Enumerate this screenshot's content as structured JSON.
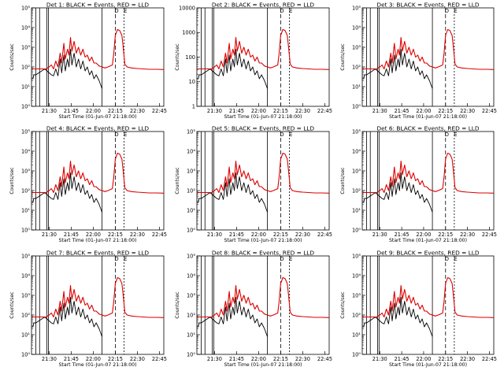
{
  "chart_data": [
    {
      "type": "line",
      "title": "Det 1: BLACK = Events, RED = LLD",
      "xlabel": "Start Time (01-Jun-07 21:18:00)",
      "ylabel": "Counts/sec",
      "yscale": "log",
      "ylim": [
        1,
        100000
      ],
      "ytick_labels": [
        "10⁰",
        "10¹",
        "10²",
        "10³",
        "10⁴",
        "10⁵"
      ],
      "ytick_values": [
        1,
        10,
        100,
        1000,
        10000,
        100000
      ],
      "xtick_labels": [
        "21:30",
        "21:45",
        "22:00",
        "22:15",
        "22:30",
        "22:45"
      ],
      "marker_labels": [
        "D",
        "E"
      ],
      "grid": false,
      "legend": "title",
      "series": [
        {
          "name": "BLACK = Events",
          "color": "#000000",
          "shape": "events"
        },
        {
          "name": "RED = LLD",
          "color": "#dd0000",
          "shape": "lld"
        }
      ]
    },
    {
      "type": "line",
      "title": "Det 2: BLACK = Events, RED = LLD",
      "xlabel": "Start Time (01-Jun-07 21:18:00)",
      "ylabel": "Counts/sec",
      "yscale": "log",
      "ylim": [
        1,
        10000
      ],
      "ytick_labels": [
        "1",
        "10",
        "100",
        "1000",
        "10000"
      ],
      "ytick_values": [
        1,
        10,
        100,
        1000,
        10000
      ],
      "xtick_labels": [
        "21:30",
        "21:45",
        "22:00",
        "22:15",
        "22:30",
        "22:45"
      ],
      "marker_labels": [
        "D",
        "E"
      ],
      "grid": false,
      "legend": "title",
      "series": [
        {
          "name": "BLACK = Events",
          "color": "#000000",
          "shape": "events"
        },
        {
          "name": "RED = LLD",
          "color": "#dd0000",
          "shape": "lld"
        }
      ]
    },
    {
      "type": "line",
      "title": "Det 3: BLACK = Events, RED = LLD",
      "xlabel": "Start Time (01-Jun-07 21:18:00)",
      "ylabel": "Counts/sec",
      "yscale": "log",
      "ylim": [
        1,
        100000
      ],
      "ytick_labels": [
        "10⁰",
        "10¹",
        "10²",
        "10³",
        "10⁴",
        "10⁵"
      ],
      "ytick_values": [
        1,
        10,
        100,
        1000,
        10000,
        100000
      ],
      "xtick_labels": [
        "21:30",
        "21:45",
        "22:00",
        "22:15",
        "22:30",
        "22:45"
      ],
      "marker_labels": [
        "D",
        "E"
      ],
      "grid": false,
      "legend": "title",
      "series": [
        {
          "name": "BLACK = Events",
          "color": "#000000",
          "shape": "events"
        },
        {
          "name": "RED = LLD",
          "color": "#dd0000",
          "shape": "lld"
        }
      ]
    },
    {
      "type": "line",
      "title": "Det 4: BLACK = Events, RED = LLD",
      "xlabel": "Start Time (01-Jun-07 21:18:00)",
      "ylabel": "Counts/sec",
      "yscale": "log",
      "ylim": [
        1,
        100000
      ],
      "ytick_labels": [
        "10⁰",
        "10¹",
        "10²",
        "10³",
        "10⁴",
        "10⁵"
      ],
      "ytick_values": [
        1,
        10,
        100,
        1000,
        10000,
        100000
      ],
      "xtick_labels": [
        "21:30",
        "21:45",
        "22:00",
        "22:15",
        "22:30",
        "22:45"
      ],
      "marker_labels": [
        "D",
        "E"
      ],
      "grid": false,
      "legend": "title",
      "series": [
        {
          "name": "BLACK = Events",
          "color": "#000000",
          "shape": "events"
        },
        {
          "name": "RED = LLD",
          "color": "#dd0000",
          "shape": "lld"
        }
      ]
    },
    {
      "type": "line",
      "title": "Det 5: BLACK = Events, RED = LLD",
      "xlabel": "Start Time (01-Jun-07 21:18:00)",
      "ylabel": "Counts/sec",
      "yscale": "log",
      "ylim": [
        1,
        100000
      ],
      "ytick_labels": [
        "10⁰",
        "10¹",
        "10²",
        "10³",
        "10⁴",
        "10⁵"
      ],
      "ytick_values": [
        1,
        10,
        100,
        1000,
        10000,
        100000
      ],
      "xtick_labels": [
        "21:30",
        "21:45",
        "22:00",
        "22:15",
        "22:30",
        "22:45"
      ],
      "marker_labels": [
        "D",
        "E"
      ],
      "grid": false,
      "legend": "title",
      "series": [
        {
          "name": "BLACK = Events",
          "color": "#000000",
          "shape": "events"
        },
        {
          "name": "RED = LLD",
          "color": "#dd0000",
          "shape": "lld"
        }
      ]
    },
    {
      "type": "line",
      "title": "Det 6: BLACK = Events, RED = LLD",
      "xlabel": "Start Time (01-Jun-07 21:18:00)",
      "ylabel": "Counts/sec",
      "yscale": "log",
      "ylim": [
        1,
        100000
      ],
      "ytick_labels": [
        "10⁰",
        "10¹",
        "10²",
        "10³",
        "10⁴",
        "10⁵"
      ],
      "ytick_values": [
        1,
        10,
        100,
        1000,
        10000,
        100000
      ],
      "xtick_labels": [
        "21:30",
        "21:45",
        "22:00",
        "22:15",
        "22:30",
        "22:45"
      ],
      "marker_labels": [
        "D",
        "E"
      ],
      "grid": false,
      "legend": "title",
      "series": [
        {
          "name": "BLACK = Events",
          "color": "#000000",
          "shape": "events"
        },
        {
          "name": "RED = LLD",
          "color": "#dd0000",
          "shape": "lld"
        }
      ]
    },
    {
      "type": "line",
      "title": "Det 7: BLACK = Events, RED = LLD",
      "xlabel": "Start Time (01-Jun-07 21:18:00)",
      "ylabel": "Counts/sec",
      "yscale": "log",
      "ylim": [
        1,
        100000
      ],
      "ytick_labels": [
        "10⁰",
        "10¹",
        "10²",
        "10³",
        "10⁴",
        "10⁵"
      ],
      "ytick_values": [
        1,
        10,
        100,
        1000,
        10000,
        100000
      ],
      "xtick_labels": [
        "21:30",
        "21:45",
        "22:00",
        "22:15",
        "22:30",
        "22:45"
      ],
      "marker_labels": [
        "D",
        "E"
      ],
      "grid": false,
      "legend": "title",
      "series": [
        {
          "name": "BLACK = Events",
          "color": "#000000",
          "shape": "events"
        },
        {
          "name": "RED = LLD",
          "color": "#dd0000",
          "shape": "lld"
        }
      ]
    },
    {
      "type": "line",
      "title": "Det 8: BLACK = Events, RED = LLD",
      "xlabel": "Start Time (01-Jun-07 21:18:00)",
      "ylabel": "Counts/sec",
      "yscale": "log",
      "ylim": [
        1,
        100000
      ],
      "ytick_labels": [
        "10⁰",
        "10¹",
        "10²",
        "10³",
        "10⁴",
        "10⁵"
      ],
      "ytick_values": [
        1,
        10,
        100,
        1000,
        10000,
        100000
      ],
      "xtick_labels": [
        "21:30",
        "21:45",
        "22:00",
        "22:15",
        "22:30",
        "22:45"
      ],
      "marker_labels": [
        "D",
        "E"
      ],
      "grid": false,
      "legend": "title",
      "series": [
        {
          "name": "BLACK = Events",
          "color": "#000000",
          "shape": "events"
        },
        {
          "name": "RED = LLD",
          "color": "#dd0000",
          "shape": "lld"
        }
      ]
    },
    {
      "type": "line",
      "title": "Det 9: BLACK = Events, RED = LLD",
      "xlabel": "Start Time (01-Jun-07 21:18:00)",
      "ylabel": "Counts/sec",
      "yscale": "log",
      "ylim": [
        1,
        100000
      ],
      "ytick_labels": [
        "10⁰",
        "10¹",
        "10²",
        "10³",
        "10⁴",
        "10⁵"
      ],
      "ytick_values": [
        1,
        10,
        100,
        1000,
        10000,
        100000
      ],
      "xtick_labels": [
        "21:30",
        "21:45",
        "22:00",
        "22:15",
        "22:30",
        "22:45"
      ],
      "marker_labels": [
        "D",
        "E"
      ],
      "grid": false,
      "legend": "title",
      "series": [
        {
          "name": "BLACK = Events",
          "color": "#000000",
          "shape": "events"
        },
        {
          "name": "RED = LLD",
          "color": "#dd0000",
          "shape": "lld"
        }
      ]
    }
  ]
}
